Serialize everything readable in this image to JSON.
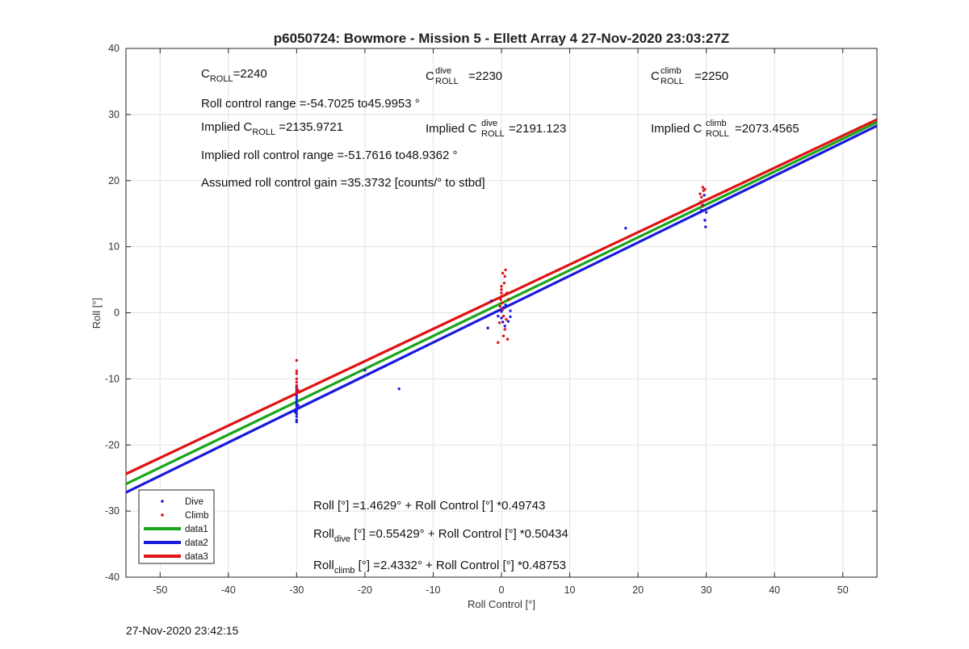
{
  "timestamp": "27-Nov-2020 23:42:15",
  "chart_data": {
    "type": "scatter",
    "title": "p6050724: Bowmore - Mission 5 - Ellett Array 4 27-Nov-2020 23:03:27Z",
    "xlabel": "Roll Control [°]",
    "ylabel": "Roll [°]",
    "xlim": [
      -55,
      55
    ],
    "ylim": [
      -40,
      40
    ],
    "xticks": [
      -50,
      -40,
      -30,
      -20,
      -10,
      0,
      10,
      20,
      30,
      40,
      50
    ],
    "yticks": [
      -40,
      -30,
      -20,
      -10,
      0,
      10,
      20,
      30,
      40
    ],
    "grid": true,
    "legend_position": "bottom-left",
    "series": [
      {
        "name": "Dive",
        "kind": "points",
        "color": "#1a1adb",
        "points": [
          [
            -30,
            -16.5
          ],
          [
            -30,
            -16.2
          ],
          [
            -30,
            -15.7
          ],
          [
            -30,
            -15.3
          ],
          [
            -30,
            -14.9
          ],
          [
            -30,
            -14.5
          ],
          [
            -30,
            -14.1
          ],
          [
            -30,
            -13.8
          ],
          [
            -30,
            -13.4
          ],
          [
            -30,
            -13.0
          ],
          [
            -30,
            -12.6
          ],
          [
            -30,
            -12.2
          ],
          [
            -30,
            -11.8
          ],
          [
            -30,
            -11.3
          ],
          [
            -30.2,
            -15.0
          ],
          [
            -29.8,
            -14.0
          ],
          [
            -20,
            -8.7
          ],
          [
            -18,
            -8.5
          ],
          [
            -15,
            -11.5
          ],
          [
            -2,
            -2.3
          ],
          [
            -1.5,
            1.8
          ],
          [
            -0.5,
            -0.5
          ],
          [
            0,
            0.2
          ],
          [
            0,
            -0.8
          ],
          [
            0.2,
            -1.4
          ],
          [
            0.3,
            0.8
          ],
          [
            0.5,
            -2.0
          ],
          [
            0.6,
            1.2
          ],
          [
            1,
            -1.3
          ],
          [
            1.3,
            -0.6
          ],
          [
            1.3,
            0.3
          ],
          [
            18.2,
            12.8
          ],
          [
            29.3,
            15.5
          ],
          [
            29.5,
            16.3
          ],
          [
            29.7,
            17.8
          ],
          [
            29.8,
            14.0
          ],
          [
            29.9,
            13.0
          ],
          [
            30,
            15.2
          ]
        ]
      },
      {
        "name": "Climb",
        "kind": "points",
        "color": "#e01212",
        "points": [
          [
            -30,
            -7.2
          ],
          [
            -30,
            -8.8
          ],
          [
            -30,
            -9.2
          ],
          [
            -30,
            -10.0
          ],
          [
            -30,
            -10.5
          ],
          [
            -30,
            -11.0
          ],
          [
            -30,
            -11.5
          ],
          [
            -30,
            -12.0
          ],
          [
            -30.2,
            -12.3
          ],
          [
            -29.8,
            -11.7
          ],
          [
            -0.5,
            -4.5
          ],
          [
            -0.3,
            -1.5
          ],
          [
            -0.2,
            1.0
          ],
          [
            -0.1,
            2.0
          ],
          [
            0,
            3.0
          ],
          [
            0,
            3.5
          ],
          [
            0,
            4.0
          ],
          [
            0,
            2.5
          ],
          [
            0.1,
            1.5
          ],
          [
            0.2,
            0.5
          ],
          [
            0.3,
            -0.5
          ],
          [
            0.3,
            -3.5
          ],
          [
            0.4,
            4.5
          ],
          [
            0.5,
            5.5
          ],
          [
            0.6,
            6.5
          ],
          [
            0.7,
            -1.0
          ],
          [
            0.2,
            6.0
          ],
          [
            0.8,
            3.0
          ],
          [
            0.9,
            -4.0
          ],
          [
            1.0,
            2.0
          ],
          [
            0.5,
            -2.5
          ],
          [
            29.1,
            18.0
          ],
          [
            29.2,
            16.8
          ],
          [
            29.3,
            17.5
          ],
          [
            29.4,
            16.2
          ],
          [
            29.5,
            19.0
          ],
          [
            29.6,
            18.5
          ],
          [
            29.7,
            17.0
          ],
          [
            29.8,
            18.7
          ]
        ]
      },
      {
        "name": "data1",
        "kind": "line",
        "color": "#1aa51a",
        "intercept": 1.4629,
        "slope": 0.49743
      },
      {
        "name": "data2",
        "kind": "line",
        "color": "#1a1adb",
        "intercept": 0.55429,
        "slope": 0.50434
      },
      {
        "name": "data3",
        "kind": "line",
        "color": "#e01212",
        "intercept": 2.4332,
        "slope": 0.48753
      }
    ],
    "annotations": {
      "c_roll": {
        "base": "C",
        "sub": "ROLL",
        "value": "=2240"
      },
      "c_roll_dive": {
        "base": "C",
        "sup": "dive",
        "sub": "ROLL",
        "value": "=2230"
      },
      "c_roll_climb": {
        "base": "C",
        "sup": "climb",
        "sub": "ROLL",
        "value": "=2250"
      },
      "roll_control_range": "Roll control range =-54.7025 to45.9953 °",
      "implied_c_roll": {
        "prefix": "Implied C",
        "sub": "ROLL",
        "value": " =2135.9721"
      },
      "implied_c_roll_dive": {
        "prefix": "Implied C",
        "sup": "dive",
        "sub": "ROLL",
        "value": " =2191.123"
      },
      "implied_c_roll_climb": {
        "prefix": "Implied C",
        "sup": "climb",
        "sub": "ROLL",
        "value": " =2073.4565"
      },
      "implied_range": "Implied roll control range =-51.7616 to48.9362 °",
      "gain": "Assumed roll control gain =35.3732 [counts/° to stbd]",
      "fit_all": "Roll [°] =1.4629° + Roll Control [°] *0.49743",
      "fit_dive": {
        "prefix": "Roll",
        "sub": "dive",
        "value": " [°] =0.55429° + Roll Control [°] *0.50434"
      },
      "fit_climb": {
        "prefix": "Roll",
        "sub": "climb",
        "value": " [°] =2.4332° + Roll Control [°] *0.48753"
      }
    }
  }
}
